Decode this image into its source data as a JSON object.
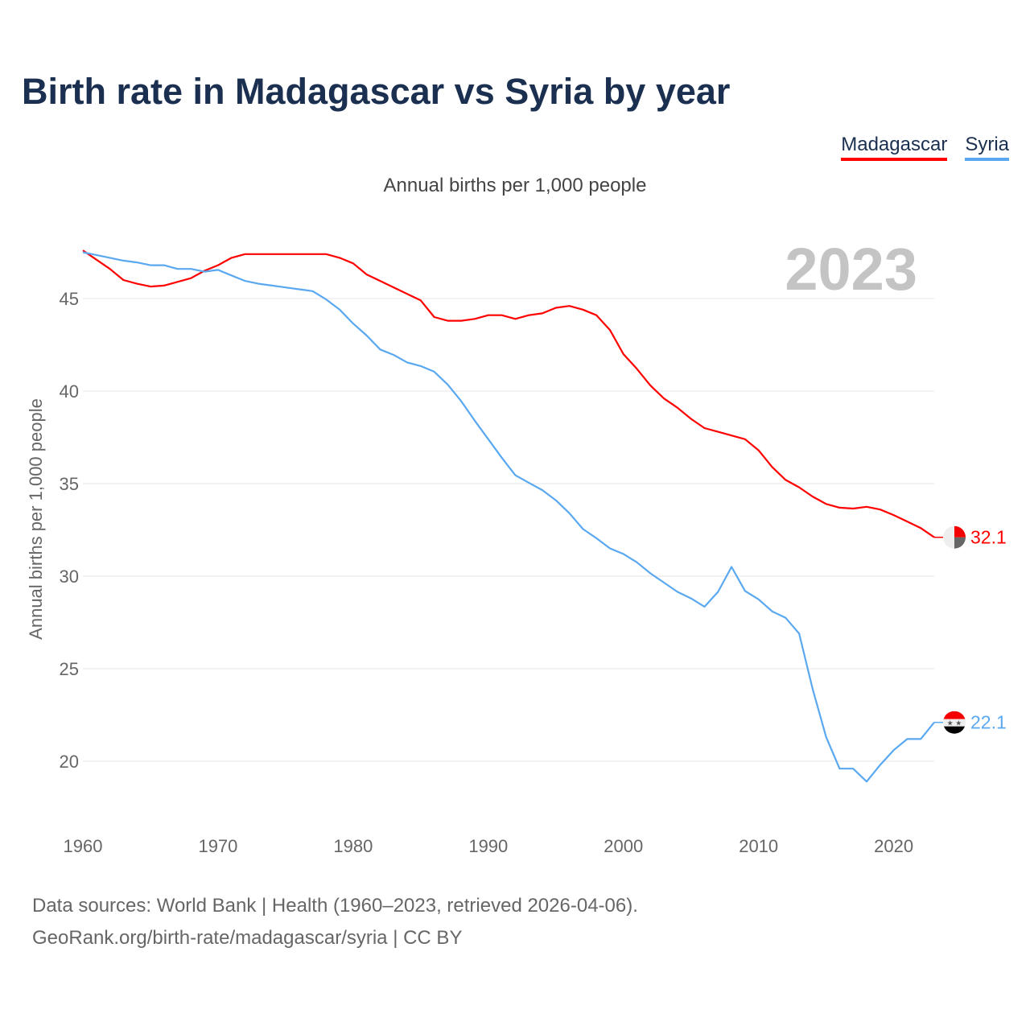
{
  "title": "Birth rate in Madagascar vs Syria by year",
  "subtitle": "Annual births per 1,000 people",
  "footer": {
    "line1": "Data sources: World Bank | Health (1960–2023, retrieved 2026-04-06).",
    "line2": "GeoRank.org/birth-rate/madagascar/syria | CC BY"
  },
  "chart_data": {
    "type": "line",
    "title": "Birth rate in Madagascar vs Syria by year",
    "ylabel": "Annual births per 1,000 people",
    "xlabel": "",
    "year_label": "2023",
    "xlim": [
      1960,
      2023
    ],
    "ylim": [
      17,
      48.5
    ],
    "yticks": [
      20,
      25,
      30,
      35,
      40,
      45
    ],
    "xticks": [
      1960,
      1970,
      1980,
      1990,
      2000,
      2010,
      2020
    ],
    "grid": true,
    "legend": "top-right",
    "x_start": 1960,
    "series": [
      {
        "name": "Madagascar",
        "color": "#ff0000",
        "end_label": "32.1",
        "values": [
          47.6,
          47.1,
          46.6,
          46.0,
          45.8,
          45.65,
          45.7,
          45.9,
          46.1,
          46.5,
          46.8,
          47.2,
          47.4,
          47.4,
          47.4,
          47.4,
          47.4,
          47.4,
          47.4,
          47.2,
          46.9,
          46.3,
          45.95,
          45.6,
          45.25,
          44.9,
          44.0,
          43.8,
          43.8,
          43.9,
          44.1,
          44.1,
          43.9,
          44.1,
          44.2,
          44.5,
          44.6,
          44.4,
          44.1,
          43.3,
          42.0,
          41.2,
          40.3,
          39.6,
          39.1,
          38.5,
          38.0,
          37.8,
          37.6,
          37.4,
          36.8,
          35.9,
          35.2,
          34.8,
          34.3,
          33.9,
          33.7,
          33.65,
          33.75,
          33.6,
          33.3,
          32.95,
          32.6,
          32.1
        ]
      },
      {
        "name": "Syria",
        "color": "#5aa8f0",
        "end_label": "22.1",
        "values": [
          47.5,
          47.35,
          47.2,
          47.05,
          46.95,
          46.8,
          46.8,
          46.6,
          46.6,
          46.45,
          46.55,
          46.25,
          45.95,
          45.8,
          45.7,
          45.6,
          45.5,
          45.4,
          44.95,
          44.4,
          43.65,
          43.0,
          42.25,
          41.95,
          41.55,
          41.35,
          41.05,
          40.35,
          39.45,
          38.4,
          37.4,
          36.4,
          35.45,
          35.05,
          34.65,
          34.1,
          33.4,
          32.55,
          32.05,
          31.5,
          31.2,
          30.75,
          30.15,
          29.65,
          29.15,
          28.8,
          28.35,
          29.15,
          30.5,
          29.2,
          28.75,
          28.1,
          27.75,
          26.9,
          23.9,
          21.3,
          19.6,
          19.6,
          18.9,
          19.8,
          20.6,
          21.2,
          21.2,
          22.1
        ]
      }
    ]
  }
}
